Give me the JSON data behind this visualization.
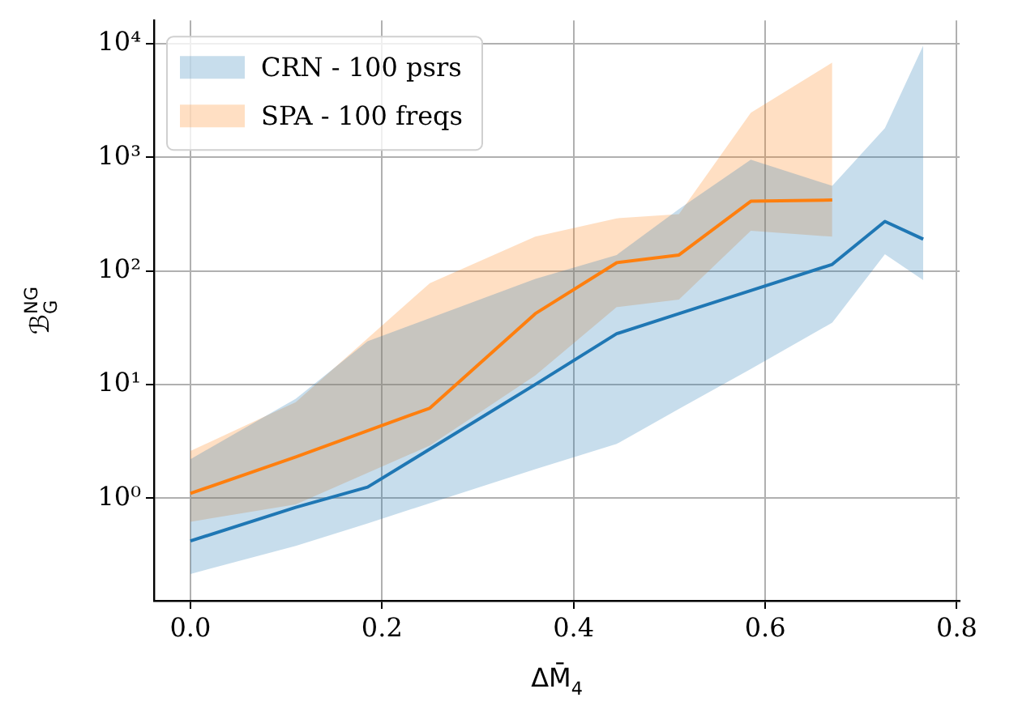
{
  "chart_data": {
    "type": "line",
    "xlabel": "ΔM̄$_{4}$",
    "ylabel": "ℬ$_{G}$$^{NG}$",
    "series": [
      {
        "name": "CRN - 100 psrs",
        "color": "#1f77b4",
        "x": [
          0,
          0.11,
          0.185,
          0.36,
          0.445,
          0.51,
          0.585,
          0.67,
          0.725,
          0.765
        ],
        "values": [
          0.42,
          0.83,
          1.25,
          10,
          28,
          42,
          67,
          114,
          272,
          190
        ],
        "lower": [
          0.215,
          0.38,
          0.6,
          1.8,
          3.0,
          6.1,
          13.7,
          35,
          140,
          83
        ],
        "upper": [
          2.2,
          7.5,
          24,
          85,
          138,
          350,
          950,
          560,
          1800,
          9600
        ]
      },
      {
        "name": "SPA - 100 freqs",
        "color": "#ff7f0e",
        "x": [
          0,
          0.11,
          0.25,
          0.36,
          0.445,
          0.51,
          0.585,
          0.67
        ],
        "values": [
          1.1,
          2.3,
          6.2,
          42,
          118,
          138,
          410,
          420
        ],
        "lower": [
          0.62,
          0.88,
          2.9,
          12,
          48,
          56,
          225,
          200
        ],
        "upper": [
          2.6,
          7,
          78,
          200,
          290,
          316,
          2460,
          6800
        ]
      }
    ],
    "log": "y",
    "xlim": [
      -0.038,
      0.803
    ],
    "xticks": [
      {
        "value": 0,
        "label": "0.0"
      },
      0.2,
      0.4,
      0.6,
      0.8
    ],
    "ylim": [
      0.125,
      16000
    ],
    "yticks": [
      {
        "value": 1,
        "label": "10⁰"
      },
      {
        "value": 10,
        "label": "10¹"
      },
      {
        "value": 100,
        "label": "10²"
      },
      {
        "value": 1000,
        "label": "10³"
      },
      {
        "value": 10000,
        "label": "10⁴"
      }
    ],
    "grid": true,
    "legend": "top left"
  }
}
